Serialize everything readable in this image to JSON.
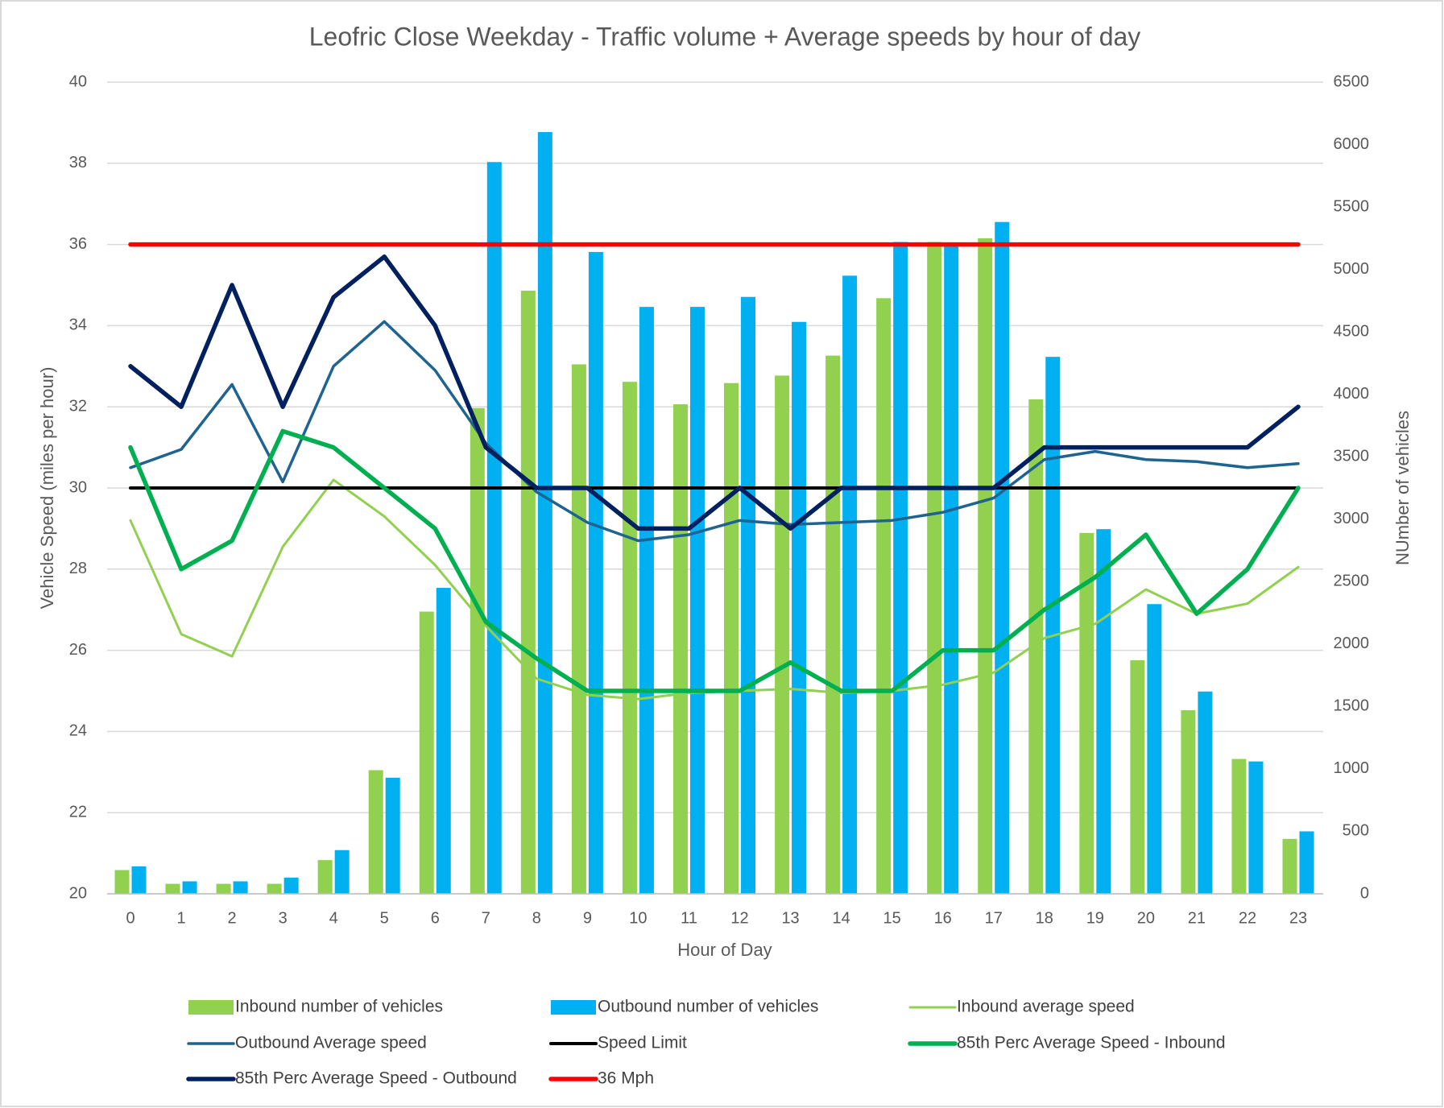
{
  "chart_data": {
    "type": "combo",
    "title": "Leofric Close Weekday - Traffic volume + Average speeds by hour of day",
    "x_label": "Hour of Day",
    "y_label": "Vehicle Speed (miles per hour)",
    "y2_label": "NUmber of vehicles",
    "categories": [
      "0",
      "1",
      "2",
      "3",
      "4",
      "5",
      "6",
      "7",
      "8",
      "9",
      "10",
      "11",
      "12",
      "13",
      "14",
      "15",
      "16",
      "17",
      "18",
      "19",
      "20",
      "21",
      "22",
      "23"
    ],
    "ylim": [
      20,
      40
    ],
    "yticks": [
      20,
      22,
      24,
      26,
      28,
      30,
      32,
      34,
      36,
      38,
      40
    ],
    "y2lim": [
      0,
      6500
    ],
    "y2ticks": [
      0,
      500,
      1000,
      1500,
      2000,
      2500,
      3000,
      3500,
      4000,
      4500,
      5000,
      5500,
      6000,
      6500
    ],
    "grid": true,
    "legend": "bottom",
    "series": [
      {
        "name": "Inbound number of vehicles",
        "type": "bar",
        "axis": "y2",
        "color": "#92d050",
        "values": [
          190,
          80,
          80,
          80,
          270,
          990,
          2260,
          3890,
          4830,
          4240,
          4100,
          3920,
          4090,
          4150,
          4310,
          4770,
          5220,
          5250,
          3960,
          2890,
          1870,
          1470,
          1080,
          440
        ]
      },
      {
        "name": "Outbound number of vehicles",
        "type": "bar",
        "axis": "y2",
        "color": "#00b0f0",
        "values": [
          220,
          100,
          100,
          130,
          350,
          930,
          2450,
          5860,
          6100,
          5140,
          4700,
          4700,
          4780,
          4580,
          4950,
          5220,
          5200,
          5380,
          4300,
          2920,
          2320,
          1620,
          1060,
          500
        ]
      },
      {
        "name": "Inbound average speed",
        "type": "line",
        "color": "#92d050",
        "width": 3,
        "values": [
          29.2,
          26.4,
          25.85,
          28.55,
          30.2,
          29.3,
          28.1,
          26.6,
          25.3,
          24.9,
          24.8,
          24.95,
          25.0,
          25.05,
          24.95,
          25.0,
          25.15,
          25.45,
          26.3,
          26.65,
          27.5,
          26.9,
          27.15,
          28.05
        ]
      },
      {
        "name": "Outbound Average speed",
        "type": "line",
        "color": "#1f6391",
        "width": 3.5,
        "values": [
          30.5,
          30.95,
          32.55,
          30.15,
          33.0,
          34.1,
          32.9,
          31.1,
          29.9,
          29.15,
          28.7,
          28.85,
          29.2,
          29.1,
          29.15,
          29.2,
          29.4,
          29.75,
          30.7,
          30.9,
          30.7,
          30.65,
          30.5,
          30.6
        ]
      },
      {
        "name": "Speed Limit",
        "type": "line",
        "color": "#000000",
        "width": 4,
        "values": [
          30,
          30,
          30,
          30,
          30,
          30,
          30,
          30,
          30,
          30,
          30,
          30,
          30,
          30,
          30,
          30,
          30,
          30,
          30,
          30,
          30,
          30,
          30,
          30
        ]
      },
      {
        "name": "85th Perc Average Speed  - Inbound",
        "type": "line",
        "color": "#00b050",
        "width": 5.5,
        "values": [
          31,
          28,
          28.7,
          31.4,
          31,
          30,
          29,
          26.7,
          25.8,
          25,
          25,
          25,
          25,
          25.7,
          25,
          25,
          26,
          26,
          27,
          27.8,
          28.85,
          26.9,
          28,
          30
        ]
      },
      {
        "name": "85th Perc Average Speed  - Outbound",
        "type": "line",
        "color": "#002060",
        "width": 5.5,
        "values": [
          33,
          32,
          35,
          32,
          34.7,
          35.7,
          34,
          31,
          30,
          30,
          29,
          29,
          30,
          29,
          30,
          30,
          30,
          30,
          31,
          31,
          31,
          31,
          31,
          32
        ]
      },
      {
        "name": "36 Mph",
        "type": "line",
        "color": "#ff0000",
        "width": 5.5,
        "values": [
          36,
          36,
          36,
          36,
          36,
          36,
          36,
          36,
          36,
          36,
          36,
          36,
          36,
          36,
          36,
          36,
          36,
          36,
          36,
          36,
          36,
          36,
          36,
          36
        ]
      }
    ]
  }
}
